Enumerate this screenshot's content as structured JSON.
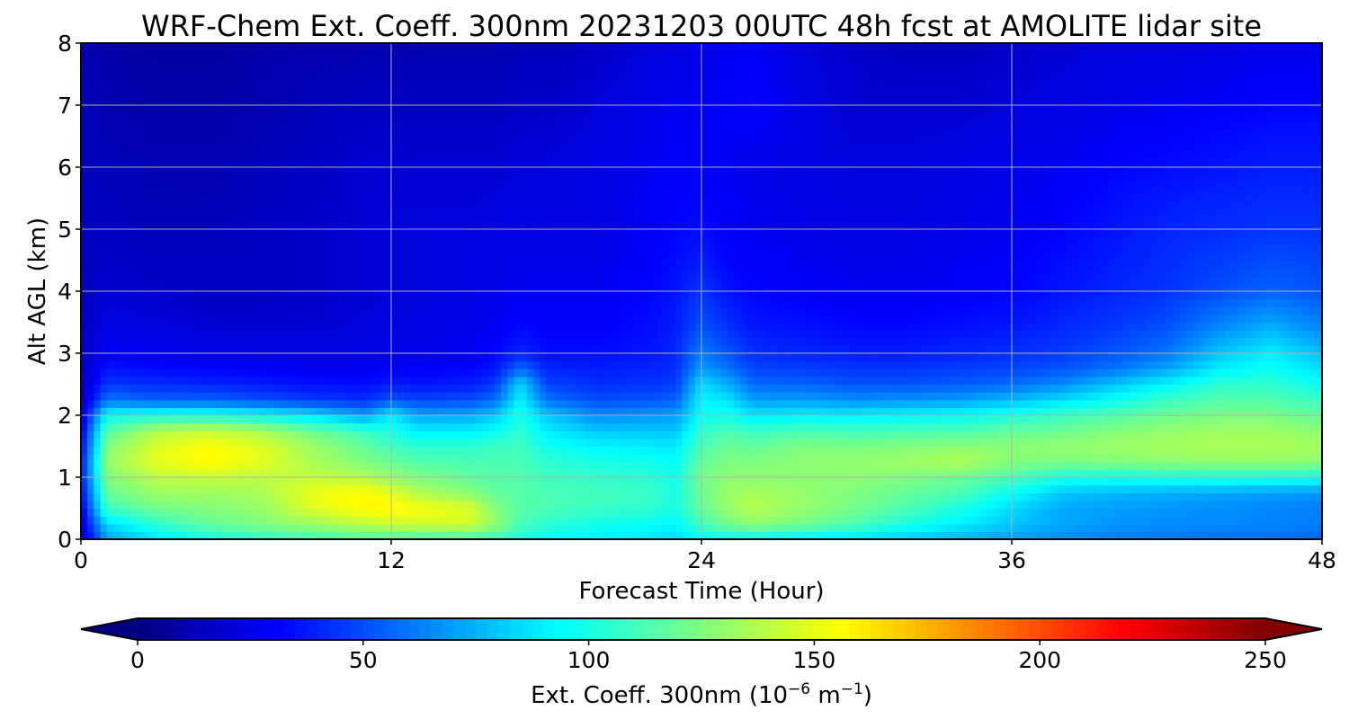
{
  "chart_data": {
    "type": "heatmap",
    "title": "WRF-Chem Ext. Coeff. 300nm  20231203 00UTC 48h fcst at AMOLITE lidar site",
    "xlabel": "Forecast Time (Hour)",
    "ylabel": "Alt AGL (km)",
    "xlim": [
      0,
      48
    ],
    "ylim": [
      0,
      8
    ],
    "xticks": [
      0,
      12,
      24,
      36,
      48
    ],
    "yticks": [
      0,
      1,
      2,
      3,
      4,
      5,
      6,
      7,
      8
    ],
    "grid": true,
    "colormap": "jet",
    "colorbar": {
      "label_main": "Ext. Coeff. 300nm  (10",
      "label_exp1": "−6",
      "label_mid": " m",
      "label_exp2": "−1",
      "label_end": ")",
      "range": [
        0,
        250
      ],
      "ticks": [
        0,
        50,
        100,
        150,
        200,
        250
      ],
      "extend": "both",
      "placement": "bottom"
    },
    "x": [
      0,
      1,
      3,
      5,
      7,
      9,
      11,
      12,
      13,
      15,
      16,
      17,
      18,
      20,
      22,
      23,
      24,
      25,
      26,
      28,
      30,
      32,
      34,
      36,
      38,
      40,
      42,
      44,
      46,
      48
    ],
    "y": [
      0,
      0.25,
      0.5,
      0.75,
      1,
      1.25,
      1.5,
      1.75,
      2,
      2.25,
      2.5,
      2.75,
      3,
      3.5,
      4,
      4.5,
      5,
      6,
      7,
      8
    ],
    "z": [
      [
        15,
        70,
        88,
        98,
        104,
        110,
        113,
        112,
        110,
        110,
        108,
        100,
        95,
        90,
        88,
        85,
        92,
        95,
        95,
        90,
        85,
        80,
        75,
        70,
        65,
        62,
        60,
        58,
        58,
        56
      ],
      [
        20,
        85,
        105,
        118,
        125,
        132,
        140,
        143,
        145,
        146,
        130,
        112,
        105,
        98,
        95,
        92,
        110,
        122,
        128,
        122,
        112,
        100,
        90,
        80,
        72,
        68,
        66,
        65,
        64,
        62
      ],
      [
        25,
        108,
        122,
        126,
        130,
        148,
        158,
        160,
        155,
        148,
        128,
        115,
        112,
        108,
        105,
        100,
        118,
        130,
        138,
        130,
        122,
        112,
        100,
        85,
        72,
        70,
        68,
        66,
        64,
        62
      ],
      [
        30,
        118,
        132,
        132,
        135,
        152,
        158,
        150,
        138,
        128,
        118,
        115,
        112,
        110,
        108,
        100,
        120,
        132,
        135,
        130,
        125,
        118,
        112,
        95,
        80,
        76,
        74,
        72,
        70,
        68
      ],
      [
        35,
        125,
        140,
        143,
        140,
        142,
        138,
        130,
        125,
        118,
        115,
        114,
        110,
        106,
        104,
        98,
        122,
        128,
        128,
        128,
        128,
        125,
        120,
        112,
        100,
        98,
        100,
        100,
        100,
        98
      ],
      [
        35,
        130,
        150,
        158,
        150,
        135,
        125,
        120,
        115,
        112,
        112,
        112,
        105,
        100,
        98,
        95,
        118,
        125,
        126,
        128,
        130,
        132,
        137,
        126,
        124,
        126,
        128,
        130,
        130,
        128
      ],
      [
        30,
        125,
        148,
        156,
        148,
        132,
        118,
        110,
        105,
        105,
        108,
        110,
        98,
        92,
        90,
        88,
        112,
        120,
        118,
        125,
        124,
        126,
        128,
        128,
        130,
        132,
        134,
        136,
        136,
        134
      ],
      [
        25,
        115,
        138,
        142,
        135,
        120,
        108,
        100,
        90,
        90,
        95,
        105,
        90,
        80,
        80,
        80,
        105,
        112,
        108,
        112,
        110,
        112,
        112,
        118,
        120,
        126,
        130,
        132,
        132,
        128
      ],
      [
        20,
        95,
        100,
        100,
        95,
        85,
        70,
        90,
        72,
        72,
        80,
        100,
        80,
        65,
        68,
        70,
        95,
        98,
        88,
        90,
        90,
        92,
        95,
        100,
        108,
        114,
        120,
        124,
        124,
        118
      ],
      [
        15,
        60,
        55,
        55,
        50,
        45,
        42,
        52,
        48,
        50,
        58,
        92,
        60,
        50,
        52,
        55,
        92,
        88,
        70,
        70,
        66,
        68,
        70,
        78,
        86,
        96,
        108,
        114,
        114,
        108
      ],
      [
        15,
        45,
        42,
        40,
        38,
        35,
        34,
        38,
        36,
        38,
        45,
        85,
        48,
        42,
        44,
        46,
        86,
        75,
        58,
        56,
        52,
        52,
        54,
        58,
        66,
        80,
        92,
        105,
        106,
        96
      ],
      [
        15,
        36,
        33,
        32,
        30,
        28,
        28,
        30,
        30,
        32,
        36,
        58,
        40,
        38,
        40,
        42,
        70,
        60,
        48,
        46,
        44,
        44,
        46,
        48,
        52,
        60,
        72,
        90,
        96,
        86
      ],
      [
        15,
        30,
        28,
        26,
        24,
        24,
        24,
        26,
        26,
        28,
        32,
        40,
        34,
        34,
        36,
        40,
        62,
        52,
        42,
        40,
        38,
        38,
        40,
        42,
        46,
        52,
        60,
        80,
        90,
        78
      ],
      [
        15,
        24,
        22,
        20,
        20,
        20,
        22,
        24,
        24,
        26,
        28,
        32,
        30,
        30,
        34,
        38,
        50,
        42,
        36,
        34,
        32,
        32,
        34,
        36,
        40,
        44,
        50,
        62,
        72,
        62
      ],
      [
        15,
        20,
        18,
        16,
        16,
        18,
        20,
        22,
        22,
        24,
        26,
        28,
        28,
        28,
        32,
        36,
        44,
        36,
        32,
        30,
        28,
        28,
        30,
        32,
        36,
        40,
        44,
        50,
        56,
        52
      ],
      [
        15,
        18,
        16,
        16,
        16,
        18,
        20,
        22,
        22,
        24,
        25,
        26,
        26,
        26,
        30,
        34,
        38,
        32,
        30,
        28,
        26,
        26,
        28,
        30,
        34,
        38,
        42,
        46,
        50,
        48
      ],
      [
        15,
        16,
        14,
        14,
        16,
        18,
        20,
        22,
        22,
        22,
        24,
        25,
        24,
        24,
        30,
        32,
        34,
        30,
        28,
        26,
        24,
        24,
        26,
        28,
        32,
        36,
        40,
        42,
        44,
        44
      ],
      [
        15,
        14,
        12,
        12,
        14,
        16,
        20,
        20,
        20,
        20,
        20,
        22,
        22,
        24,
        28,
        30,
        30,
        28,
        26,
        24,
        22,
        22,
        24,
        26,
        28,
        32,
        34,
        36,
        38,
        38
      ],
      [
        15,
        12,
        10,
        10,
        12,
        14,
        16,
        16,
        16,
        16,
        16,
        18,
        18,
        22,
        26,
        28,
        28,
        30,
        32,
        24,
        20,
        20,
        20,
        22,
        24,
        26,
        28,
        30,
        32,
        32
      ],
      [
        12,
        10,
        8,
        8,
        10,
        12,
        12,
        12,
        12,
        12,
        12,
        14,
        14,
        18,
        22,
        24,
        26,
        28,
        30,
        22,
        18,
        16,
        16,
        18,
        20,
        22,
        22,
        24,
        26,
        26
      ]
    ]
  }
}
